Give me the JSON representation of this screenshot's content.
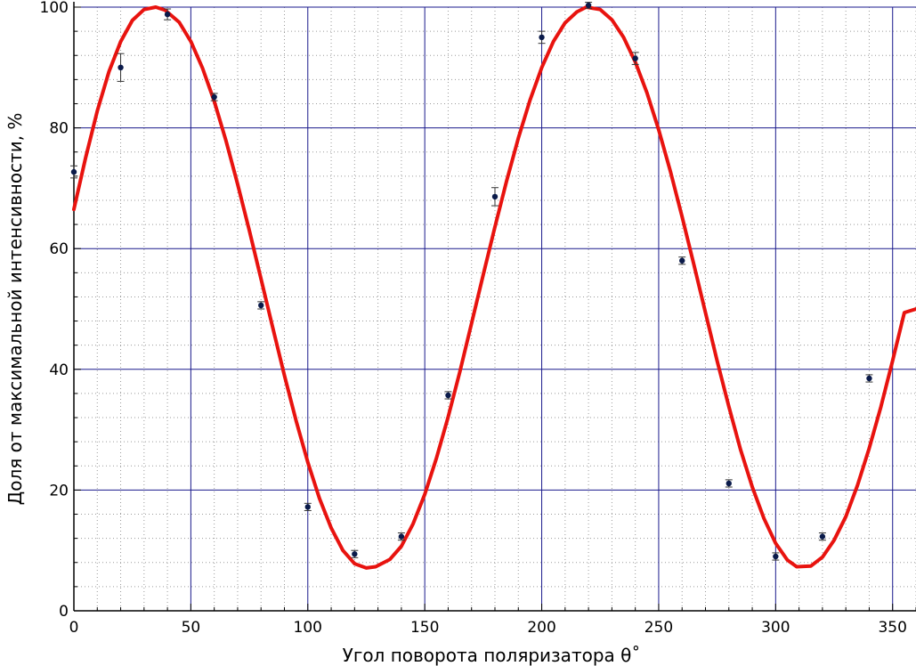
{
  "chart_data": {
    "type": "scatter",
    "title": "",
    "xlabel": "Угол поворота поляризатора θ˚",
    "ylabel": "Доля от максимальной интенсивности, %",
    "xlim": [
      0,
      360
    ],
    "ylim": [
      0,
      100
    ],
    "x_ticks": [
      0,
      50,
      100,
      150,
      200,
      250,
      300,
      350
    ],
    "x_tick_labels": [
      "0",
      "50",
      "100",
      "150",
      "200",
      "250",
      "300",
      "350"
    ],
    "y_ticks": [
      0,
      20,
      40,
      60,
      80,
      100
    ],
    "y_tick_labels": [
      "0",
      "20",
      "40",
      "60",
      "80",
      "100"
    ],
    "major_grid_x": [
      50,
      100,
      150,
      200,
      250,
      300,
      350
    ],
    "grid": true,
    "series": [
      {
        "kind": "points_with_errorbars",
        "color": "#0a1a4a",
        "x": [
          0,
          20,
          40,
          60,
          80,
          100,
          120,
          140,
          160,
          180,
          200,
          220,
          240,
          260,
          280,
          300,
          320,
          340
        ],
        "y": [
          72.7,
          90.0,
          98.8,
          85.1,
          50.6,
          17.2,
          9.4,
          12.3,
          35.7,
          68.6,
          95.0,
          100.3,
          91.5,
          58.0,
          21.1,
          9.0,
          12.3,
          38.5
        ],
        "yerr": [
          1.0,
          2.3,
          0.9,
          0.6,
          0.6,
          0.6,
          0.6,
          0.6,
          0.6,
          1.5,
          1.0,
          0.5,
          1.0,
          0.6,
          0.6,
          0.6,
          0.6,
          0.6
        ]
      },
      {
        "kind": "fit_curve",
        "color": "#e8130f",
        "x": [
          0,
          5,
          10,
          15,
          20,
          25,
          30,
          35,
          39,
          45,
          50,
          55,
          60,
          65,
          70,
          75,
          80,
          85,
          90,
          95,
          100,
          105,
          110,
          115,
          120,
          125,
          129,
          135,
          140,
          145,
          150,
          155,
          160,
          165,
          170,
          175,
          180,
          185,
          190,
          195,
          200,
          205,
          210,
          215,
          219,
          225,
          230,
          235,
          240,
          245,
          250,
          255,
          260,
          265,
          270,
          275,
          280,
          285,
          290,
          295,
          300,
          305,
          309,
          315,
          320,
          325,
          330,
          335,
          340,
          345,
          350,
          355,
          360
        ],
        "y": [
          66.5,
          75.0,
          82.8,
          89.3,
          94.3,
          97.8,
          99.6,
          100.0,
          99.5,
          97.5,
          94.3,
          89.9,
          84.4,
          77.9,
          70.7,
          63.0,
          55.0,
          46.9,
          39.0,
          31.5,
          24.6,
          18.6,
          13.7,
          10.0,
          7.8,
          7.1,
          7.3,
          8.5,
          10.7,
          14.4,
          19.3,
          25.3,
          32.1,
          39.6,
          47.6,
          55.7,
          63.6,
          71.2,
          78.3,
          84.6,
          90.0,
          94.3,
          97.4,
          99.2,
          100.0,
          99.6,
          97.9,
          95.0,
          90.9,
          85.8,
          79.7,
          72.8,
          65.3,
          57.4,
          49.4,
          41.4,
          33.8,
          26.7,
          20.5,
          15.3,
          11.2,
          8.4,
          7.3,
          7.4,
          8.9,
          11.7,
          15.6,
          20.8,
          26.9,
          33.8,
          41.4,
          49.4,
          50.0
        ]
      }
    ]
  }
}
